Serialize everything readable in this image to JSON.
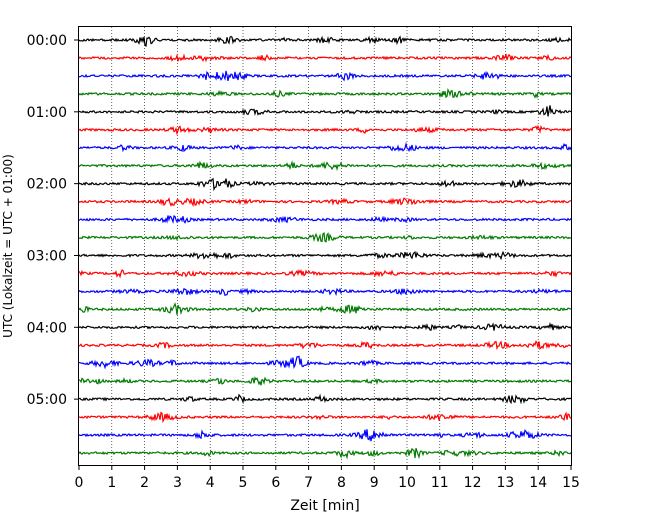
{
  "chart_data": {
    "type": "line",
    "title": "",
    "xlabel": "Zeit  [min]",
    "ylabel": "UTC (Lokalzeit = UTC + 01:00)",
    "xlim": [
      0,
      15
    ],
    "x_ticks": [
      "0",
      "1",
      "2",
      "3",
      "4",
      "5",
      "6",
      "7",
      "8",
      "9",
      "10",
      "11",
      "12",
      "13",
      "14",
      "15"
    ],
    "y_ticks": [
      "00:00",
      "01:00",
      "02:00",
      "03:00",
      "04:00",
      "05:00"
    ],
    "grid": "vertical dotted lines at each minute",
    "trace_count": 24,
    "trace_interval": "15 min",
    "trace_colors": [
      "#000000",
      "#ff0000",
      "#0000ff",
      "#007a00"
    ],
    "legend": "none"
  }
}
